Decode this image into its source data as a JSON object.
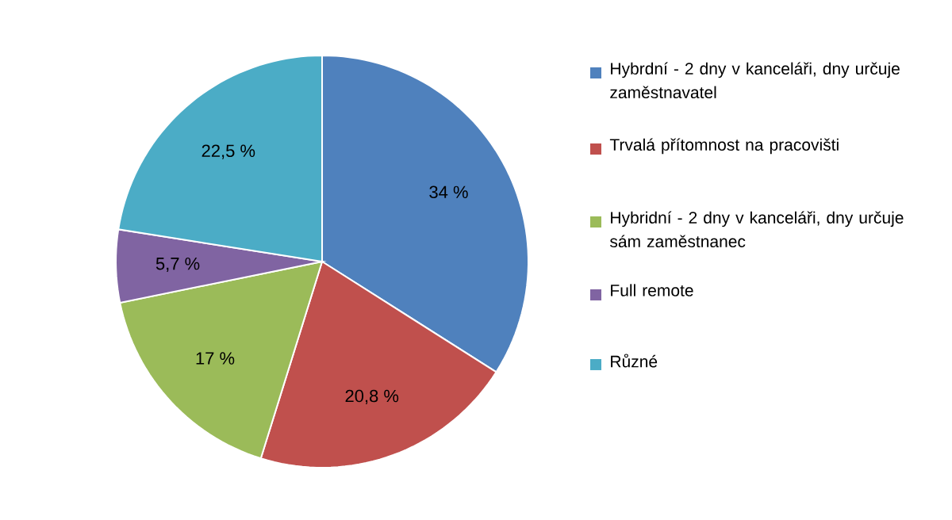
{
  "chart_data": {
    "type": "pie",
    "categories": [
      "Hybrdní - 2 dny v kanceláři, dny určuje zaměstnavatel",
      "Trvalá přítomnost na pracovišti",
      "Hybridní - 2 dny v kanceláři, dny určuje sám zaměstnanec",
      "Full remote",
      "Různé"
    ],
    "values": [
      34,
      20.8,
      17,
      5.7,
      22.5
    ],
    "value_labels": [
      "34 %",
      "20,8 %",
      "17 %",
      "5,7 %",
      "22,5 %"
    ],
    "colors": [
      "#4f81bd",
      "#c0504d",
      "#9bbb59",
      "#8064a2",
      "#4bacc6"
    ],
    "legend": "right"
  }
}
